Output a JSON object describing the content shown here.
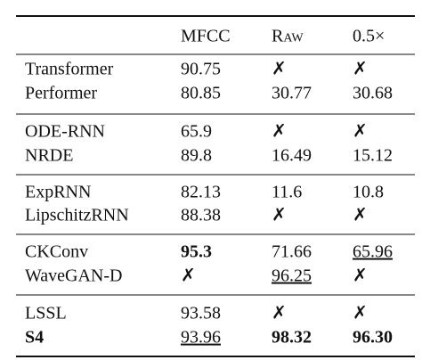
{
  "table": {
    "header": [
      "MFCC",
      "Raw",
      "0.5×"
    ],
    "rows": [
      [
        "Transformer",
        "90.75",
        "✗",
        "✗"
      ],
      [
        "Performer",
        "80.85",
        "30.77",
        "30.68"
      ],
      [
        "ODE-RNN",
        "65.9",
        "✗",
        "✗"
      ],
      [
        "NRDE",
        "89.8",
        "16.49",
        "15.12"
      ],
      [
        "ExpRNN",
        "82.13",
        "11.6",
        "10.8"
      ],
      [
        "LipschitzRNN",
        "88.38",
        "✗",
        "✗"
      ],
      [
        "CKConv",
        "95.3",
        "71.66",
        "65.96"
      ],
      [
        "WaveGAN-D",
        "✗",
        "96.25",
        "✗"
      ],
      [
        "LSSL",
        "93.58",
        "✗",
        "✗"
      ],
      [
        "S4",
        "93.96",
        "98.32",
        "96.30"
      ]
    ]
  }
}
